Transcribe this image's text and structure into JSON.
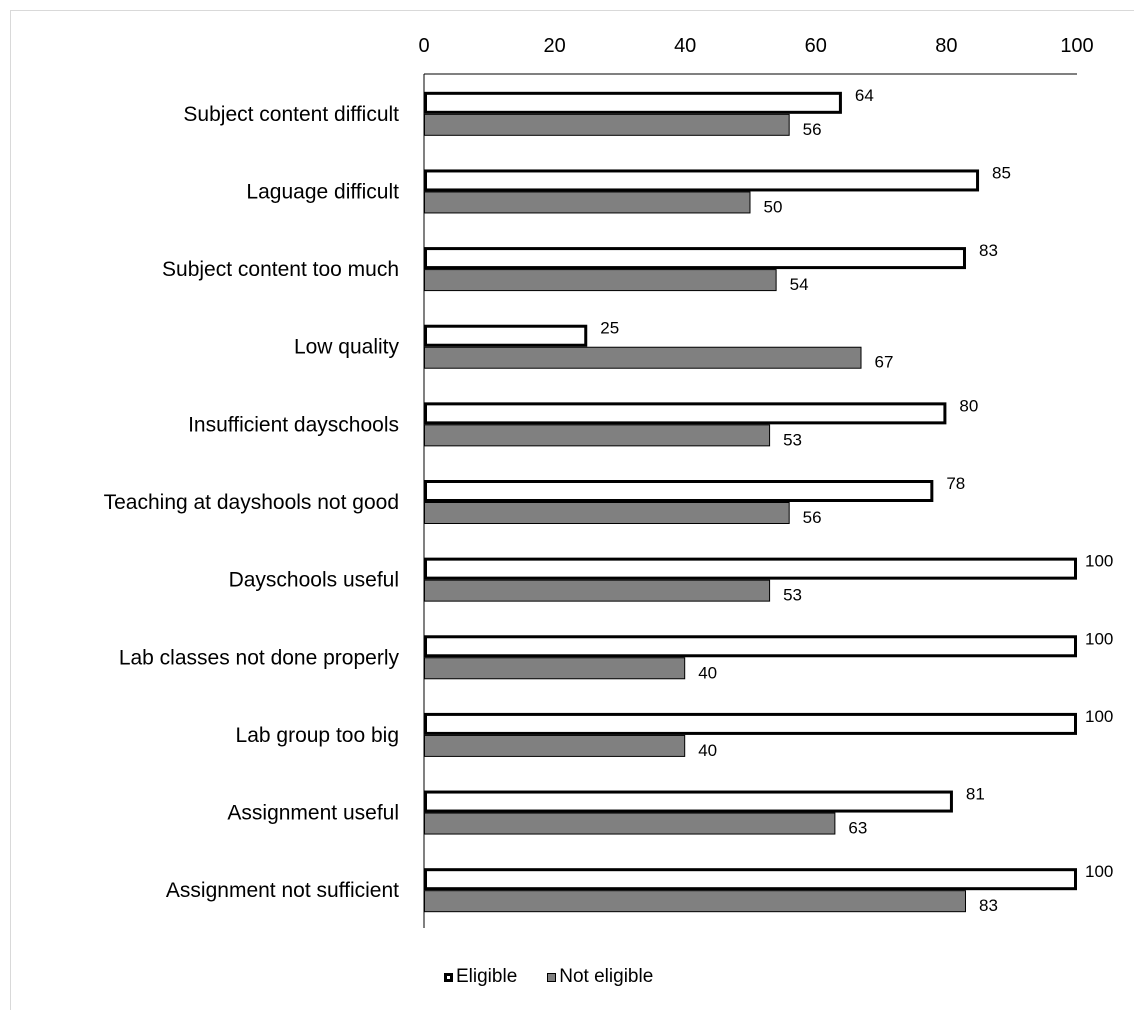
{
  "chart_data": {
    "type": "bar",
    "orientation": "horizontal",
    "categories": [
      "Subject content difficult",
      "Laguage difficult",
      "Subject content too much",
      "Low quality",
      "Insufficient dayschools",
      "Teaching at dayshools not good",
      "Dayschools useful",
      "Lab classes not done properly",
      "Lab group too big",
      "Assignment useful",
      "Assignment not sufficient"
    ],
    "series": [
      {
        "name": "Eligible",
        "values": [
          64,
          85,
          83,
          25,
          80,
          78,
          100,
          100,
          100,
          81,
          100
        ],
        "color": "#ffffff",
        "stroke": "#000000"
      },
      {
        "name": "Not eligible",
        "values": [
          56,
          50,
          54,
          67,
          53,
          56,
          53,
          40,
          40,
          63,
          83
        ],
        "color": "#808080",
        "stroke": "#000000"
      }
    ],
    "xlim": [
      0,
      100
    ],
    "xticks": [
      0,
      20,
      40,
      60,
      80,
      100
    ],
    "x_axis_position": "top",
    "grid": false,
    "data_labels": true,
    "legend_position": "bottom"
  },
  "legend": {
    "eligible": "Eligible",
    "not_eligible": "Not eligible"
  }
}
